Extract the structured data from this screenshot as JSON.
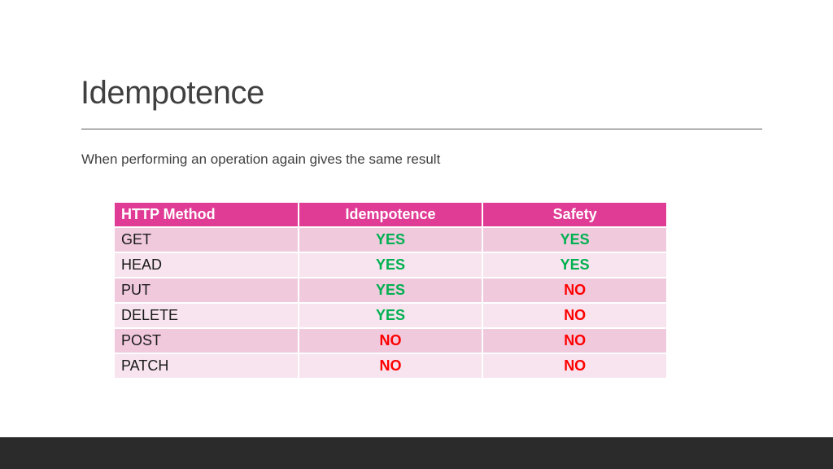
{
  "slide": {
    "title": "Idempotence",
    "subtitle": "When performing an operation again gives the same result"
  },
  "table": {
    "headers": [
      "HTTP Method",
      "Idempotence",
      "Safety"
    ],
    "rows": [
      {
        "method": "GET",
        "idempotence": "YES",
        "safety": "YES"
      },
      {
        "method": "HEAD",
        "idempotence": "YES",
        "safety": "YES"
      },
      {
        "method": "PUT",
        "idempotence": "YES",
        "safety": "NO"
      },
      {
        "method": "DELETE",
        "idempotence": "YES",
        "safety": "NO"
      },
      {
        "method": "POST",
        "idempotence": "NO",
        "safety": "NO"
      },
      {
        "method": "PATCH",
        "idempotence": "NO",
        "safety": "NO"
      }
    ]
  },
  "colors": {
    "header_bg": "#e03c96",
    "row_odd_bg": "#f0c9dd",
    "row_even_bg": "#f7e4ee",
    "yes_color": "#00b050",
    "no_color": "#ff0000",
    "footer_bar": "#2b2b2b"
  }
}
